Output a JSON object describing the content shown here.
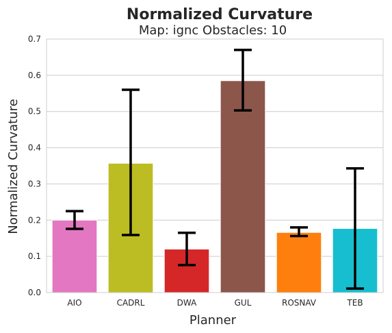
{
  "chart_data": {
    "type": "bar",
    "title": "Normalized Curvature",
    "subtitle": "Map: ignc Obstacles: 10",
    "xlabel": "Planner",
    "ylabel": "Normalized Curvature",
    "categories": [
      "AIO",
      "CADRL",
      "DWA",
      "GUL",
      "ROSNAV",
      "TEB"
    ],
    "values": [
      0.2,
      0.357,
      0.12,
      0.585,
      0.166,
      0.177
    ],
    "error_low": [
      0.176,
      0.159,
      0.076,
      0.503,
      0.156,
      0.011
    ],
    "error_high": [
      0.225,
      0.56,
      0.165,
      0.67,
      0.18,
      0.343
    ],
    "colors": [
      "#e377c2",
      "#bcbd22",
      "#d62728",
      "#8c564b",
      "#ff7f0e",
      "#17becf"
    ],
    "ylim": [
      0,
      0.7
    ],
    "yticks": [
      0.0,
      0.1,
      0.2,
      0.3,
      0.4,
      0.5,
      0.6,
      0.7
    ],
    "grid": "horizontal",
    "error_bar_color": "#000000"
  }
}
